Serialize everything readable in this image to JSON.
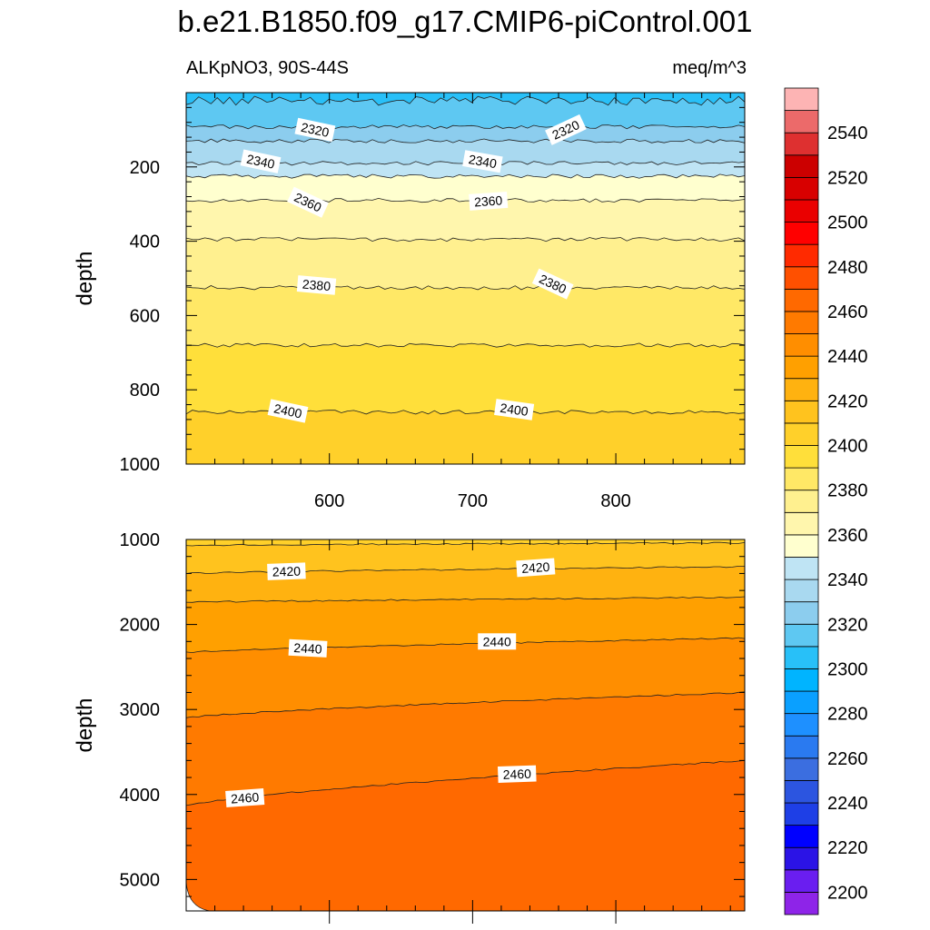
{
  "title": "b.e21.B1850.f09_g17.CMIP6-piControl.001",
  "subtitle_left": "ALKpNO3, 90S-44S",
  "subtitle_right": "meq/m^3",
  "colors": {
    "levels": [
      "#8e24e8",
      "#6a1ef0",
      "#2b13e6",
      "#0000ff",
      "#1e3fe6",
      "#2c55e0",
      "#3b6ee0",
      "#2a7af0",
      "#1e90ff",
      "#0aa0ff",
      "#00b4ff",
      "#28c0f8",
      "#5ec8f2",
      "#8ccdee",
      "#a9d9f0",
      "#bfe4f4",
      "#ffffcf",
      "#fff6ad",
      "#fff08f",
      "#ffe866",
      "#ffdf3a",
      "#ffd02a",
      "#ffc31e",
      "#ffb210",
      "#ffa000",
      "#ff8e00",
      "#ff7a00",
      "#ff6900",
      "#ff5000",
      "#ff2a00",
      "#ff0000",
      "#ea0000",
      "#d80000",
      "#cc0000",
      "#de3030",
      "#ec6a6a",
      "#fdb4b4"
    ],
    "contour_line": "#222222",
    "frame": "#000000"
  },
  "chart_data": [
    {
      "type": "contour",
      "panel": "upper",
      "xlabel": "",
      "ylabel": "depth",
      "xlim": [
        500,
        890
      ],
      "ylim": [
        1000,
        0
      ],
      "xticks": [
        600,
        700,
        800
      ],
      "yticks": [
        200,
        400,
        600,
        800,
        1000
      ],
      "x_tick_labels": [
        "600",
        "700",
        "800"
      ],
      "y_tick_labels": [
        "200",
        "400",
        "600",
        "800",
        "1000"
      ],
      "contours": [
        {
          "level": 2310,
          "depth": 22
        },
        {
          "level": 2320,
          "depth": 92
        },
        {
          "level": 2330,
          "depth": 130
        },
        {
          "level": 2340,
          "depth": 190
        },
        {
          "level": 2350,
          "depth": 225
        },
        {
          "level": 2360,
          "depth": 290
        },
        {
          "level": 2370,
          "depth": 395
        },
        {
          "level": 2380,
          "depth": 525
        },
        {
          "level": 2390,
          "depth": 680
        },
        {
          "level": 2400,
          "depth": 860
        }
      ],
      "labels": [
        {
          "text": "2320",
          "x": 590,
          "depth": 100,
          "angle": 12
        },
        {
          "text": "2320",
          "x": 765,
          "depth": 100,
          "angle": -25
        },
        {
          "text": "2340",
          "x": 552,
          "depth": 185,
          "angle": 12
        },
        {
          "text": "2340",
          "x": 707,
          "depth": 185,
          "angle": 10
        },
        {
          "text": "2360",
          "x": 585,
          "depth": 295,
          "angle": 25
        },
        {
          "text": "2360",
          "x": 711,
          "depth": 292,
          "angle": -4
        },
        {
          "text": "2380",
          "x": 591,
          "depth": 518,
          "angle": 5
        },
        {
          "text": "2380",
          "x": 756,
          "depth": 515,
          "angle": 25
        },
        {
          "text": "2400",
          "x": 571,
          "depth": 857,
          "angle": 12
        },
        {
          "text": "2400",
          "x": 729,
          "depth": 853,
          "angle": 8
        }
      ]
    },
    {
      "type": "contour",
      "panel": "lower",
      "xlabel": "",
      "ylabel": "depth",
      "xlim": [
        500,
        890
      ],
      "ylim": [
        5370,
        1000
      ],
      "xticks": [
        600,
        700,
        800
      ],
      "yticks": [
        1000,
        2000,
        3000,
        4000,
        5000
      ],
      "x_tick_labels": [],
      "y_tick_labels": [
        "1000",
        "2000",
        "3000",
        "4000",
        "5000"
      ],
      "contours": [
        {
          "level": 2410,
          "depth_left": 1070,
          "depth_right": 1040
        },
        {
          "level": 2420,
          "depth_left": 1400,
          "depth_right": 1320
        },
        {
          "level": 2430,
          "depth_left": 1740,
          "depth_right": 1680
        },
        {
          "level": 2440,
          "depth_left": 2330,
          "depth_right": 2160
        },
        {
          "level": 2450,
          "depth_left": 3100,
          "depth_right": 2800
        },
        {
          "level": 2460,
          "depth_left": 4130,
          "depth_right": 3600
        }
      ],
      "labels": [
        {
          "text": "2420",
          "x": 570,
          "depth": 1375,
          "angle": -2
        },
        {
          "text": "2420",
          "x": 744,
          "depth": 1330,
          "angle": -4
        },
        {
          "text": "2440",
          "x": 585,
          "depth": 2280,
          "angle": 3
        },
        {
          "text": "2440",
          "x": 717,
          "depth": 2200,
          "angle": 0
        },
        {
          "text": "2460",
          "x": 541,
          "depth": 4040,
          "angle": -4
        },
        {
          "text": "2460",
          "x": 731,
          "depth": 3760,
          "angle": -2
        }
      ]
    }
  ],
  "colorbar": {
    "min": 2190,
    "max": 2560,
    "step": 10,
    "labels": [
      "2200",
      "2220",
      "2240",
      "2260",
      "2280",
      "2300",
      "2320",
      "2340",
      "2360",
      "2380",
      "2400",
      "2420",
      "2440",
      "2460",
      "2480",
      "2500",
      "2520",
      "2540"
    ]
  }
}
